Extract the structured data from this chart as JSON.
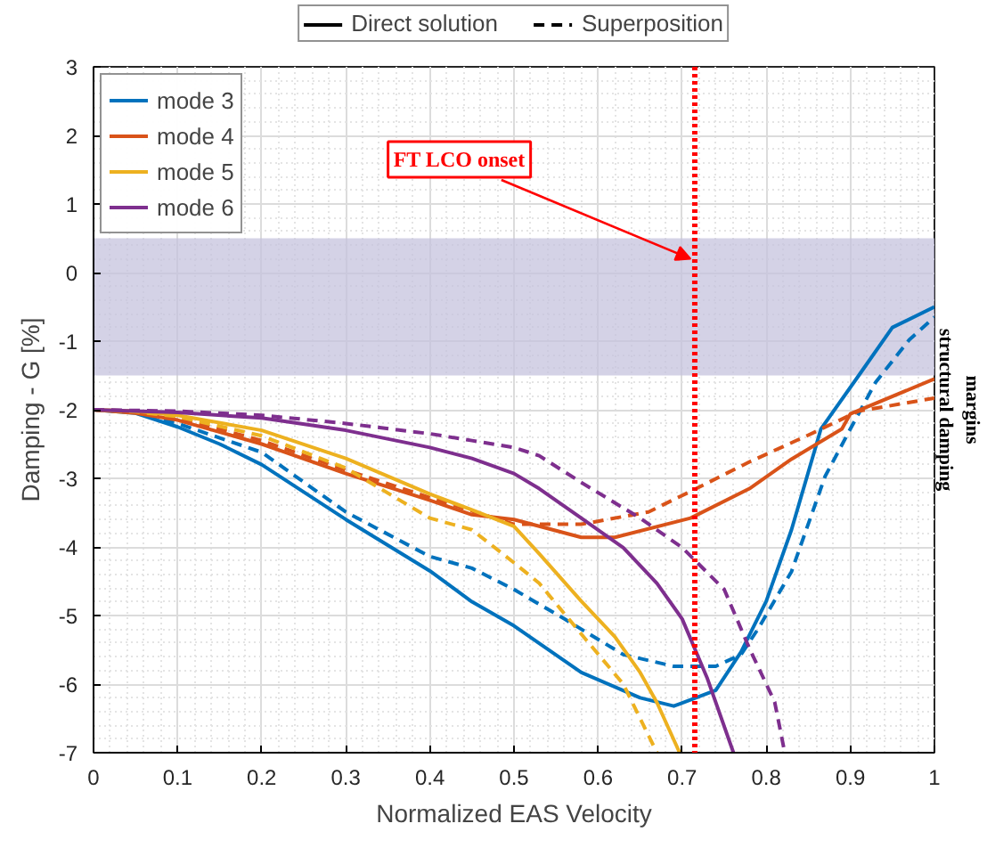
{
  "chart_data": {
    "type": "line",
    "xlabel": "Normalized EAS Velocity",
    "ylabel": "Damping - G [%]",
    "xlim": [
      0,
      1
    ],
    "ylim": [
      -7,
      3
    ],
    "xticks": [
      0,
      0.1,
      0.2,
      0.3,
      0.4,
      0.5,
      0.6,
      0.7,
      0.8,
      0.9,
      1
    ],
    "yticks": [
      -7,
      -6,
      -5,
      -4,
      -3,
      -2,
      -1,
      0,
      1,
      2,
      3
    ],
    "grid": true,
    "legend": "top left",
    "series": [
      {
        "name": "Direct solution",
        "color": "#000000",
        "line_style": "solid"
      },
      {
        "name": "Superposition",
        "color": "#000000",
        "line_style": "dashed"
      },
      {
        "name": "mode 3",
        "color": "#0072bd",
        "line_style": "solid",
        "x": [
          0,
          0.05,
          0.1,
          0.15,
          0.2,
          0.3,
          0.4,
          0.45,
          0.5,
          0.58,
          0.65,
          0.69,
          0.74,
          0.77,
          0.8,
          0.83,
          0.865,
          0.91,
          0.95,
          1
        ],
        "values": [
          -2,
          -2.05,
          -2.25,
          -2.5,
          -2.8,
          -3.6,
          -4.35,
          -4.8,
          -5.15,
          -5.83,
          -6.2,
          -6.32,
          -6.09,
          -5.53,
          -4.79,
          -3.75,
          -2.28,
          -1.5,
          -0.8,
          -0.5
        ]
      },
      {
        "color": "#0072bd",
        "line_style": "dashed",
        "x": [
          0,
          0.05,
          0.1,
          0.2,
          0.3,
          0.4,
          0.45,
          0.5,
          0.56,
          0.63,
          0.69,
          0.74,
          0.77,
          0.79,
          0.83,
          0.87,
          0.9,
          0.93,
          0.97,
          1
        ],
        "values": [
          -2,
          -2.04,
          -2.2,
          -2.62,
          -3.49,
          -4.14,
          -4.31,
          -4.62,
          -5.05,
          -5.57,
          -5.74,
          -5.74,
          -5.57,
          -5.2,
          -4.36,
          -2.97,
          -2.28,
          -1.6,
          -0.98,
          -0.65
        ]
      },
      {
        "name": "mode 4",
        "color": "#d95319",
        "line_style": "solid",
        "x": [
          0,
          0.05,
          0.1,
          0.2,
          0.3,
          0.4,
          0.45,
          0.5,
          0.58,
          0.62,
          0.71,
          0.78,
          0.83,
          0.89,
          0.9,
          1
        ],
        "values": [
          -2,
          -2.05,
          -2.15,
          -2.5,
          -2.93,
          -3.32,
          -3.53,
          -3.6,
          -3.86,
          -3.86,
          -3.58,
          -3.15,
          -2.72,
          -2.28,
          -2.06,
          -1.55
        ]
      },
      {
        "color": "#d95319",
        "line_style": "dashed",
        "x": [
          0,
          0.05,
          0.1,
          0.2,
          0.3,
          0.4,
          0.5,
          0.58,
          0.66,
          0.71,
          0.78,
          0.85,
          0.91,
          1
        ],
        "values": [
          -2,
          -2.04,
          -2.12,
          -2.45,
          -2.88,
          -3.28,
          -3.67,
          -3.67,
          -3.49,
          -3.19,
          -2.76,
          -2.37,
          -2.02,
          -1.83
        ]
      },
      {
        "name": "mode 5",
        "color": "#edb120",
        "line_style": "solid",
        "x": [
          0,
          0.05,
          0.1,
          0.2,
          0.3,
          0.4,
          0.45,
          0.5,
          0.53,
          0.58,
          0.62,
          0.65,
          0.67,
          0.697
        ],
        "values": [
          -2,
          -2.02,
          -2.08,
          -2.3,
          -2.71,
          -3.23,
          -3.46,
          -3.7,
          -4.1,
          -4.79,
          -5.31,
          -5.83,
          -6.27,
          -7
        ]
      },
      {
        "color": "#edb120",
        "line_style": "dashed",
        "x": [
          0,
          0.05,
          0.1,
          0.2,
          0.3,
          0.4,
          0.45,
          0.5,
          0.53,
          0.58,
          0.63,
          0.67
        ],
        "values": [
          -2,
          -2.03,
          -2.1,
          -2.38,
          -2.85,
          -3.58,
          -3.75,
          -4.23,
          -4.53,
          -5.27,
          -6,
          -7
        ]
      },
      {
        "name": "mode 6",
        "color": "#7e2f8e",
        "line_style": "solid",
        "x": [
          0,
          0.1,
          0.2,
          0.3,
          0.4,
          0.45,
          0.5,
          0.53,
          0.58,
          0.63,
          0.67,
          0.7,
          0.73,
          0.761
        ],
        "values": [
          -2,
          -2.04,
          -2.12,
          -2.3,
          -2.55,
          -2.71,
          -2.93,
          -3.15,
          -3.58,
          -4.01,
          -4.53,
          -5.05,
          -5.92,
          -7
        ]
      },
      {
        "color": "#7e2f8e",
        "line_style": "dashed",
        "x": [
          0,
          0.1,
          0.2,
          0.3,
          0.4,
          0.45,
          0.5,
          0.53,
          0.58,
          0.65,
          0.7,
          0.75,
          0.78,
          0.81,
          0.822
        ],
        "values": [
          -2,
          -2.02,
          -2.08,
          -2.2,
          -2.35,
          -2.45,
          -2.55,
          -2.67,
          -3.06,
          -3.58,
          -4.01,
          -4.62,
          -5.48,
          -6.26,
          -7
        ]
      }
    ],
    "ref_lines": [
      {
        "axis": "x",
        "value": 0.715,
        "label": "FT LCO onset",
        "color": "#ff0000",
        "line_style": "dotted"
      }
    ],
    "bands": [
      {
        "axis": "y",
        "from": -1.5,
        "to": 0.5,
        "label": "structural damping margins",
        "color": "#c5c3de"
      }
    ]
  }
}
